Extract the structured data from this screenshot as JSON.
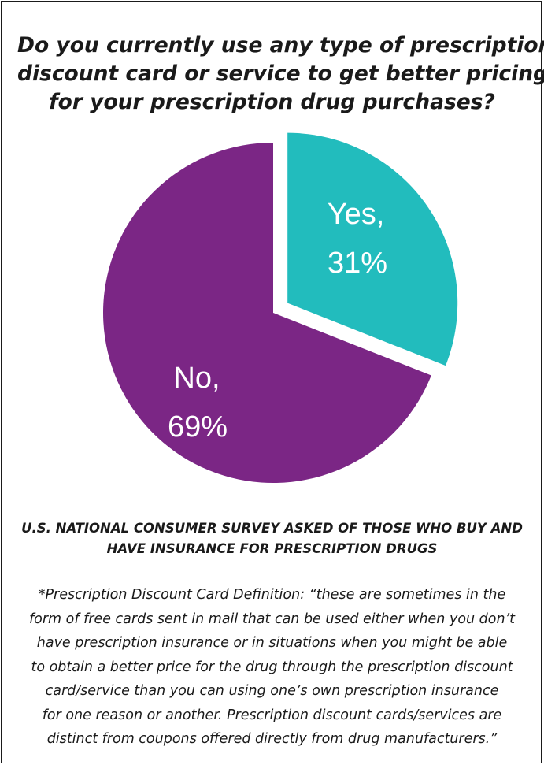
{
  "chart_data": {
    "type": "pie",
    "title_lines": [
      "Do you currently use any type of prescription",
      "discount card or service to get better pricing",
      "for your prescription drug purchases?"
    ],
    "slices": [
      {
        "label_line1": "Yes,",
        "label_line2": "31%",
        "value": 31,
        "color": "#22bcbd",
        "exploded": true
      },
      {
        "label_line1": "No,",
        "label_line2": "69%",
        "value": 69,
        "color": "#7b2685",
        "exploded": false
      }
    ]
  },
  "survey_note": [
    "U.S. NATIONAL CONSUMER SURVEY ASKED OF THOSE WHO BUY AND",
    "HAVE INSURANCE FOR PRESCRIPTION DRUGS"
  ],
  "definition_lines": [
    "*Prescription Discount Card Definition: “these are sometimes in the",
    "form of free cards sent in mail that can be used either when you don’t",
    "have prescription insurance or in situations when you might be able",
    "to obtain a better price for the drug through the prescription discount",
    "card/service than you can using one’s own prescription insurance",
    "for one reason or another.  Prescription discount cards/services are",
    "distinct from coupons offered directly from drug manufacturers.”"
  ]
}
